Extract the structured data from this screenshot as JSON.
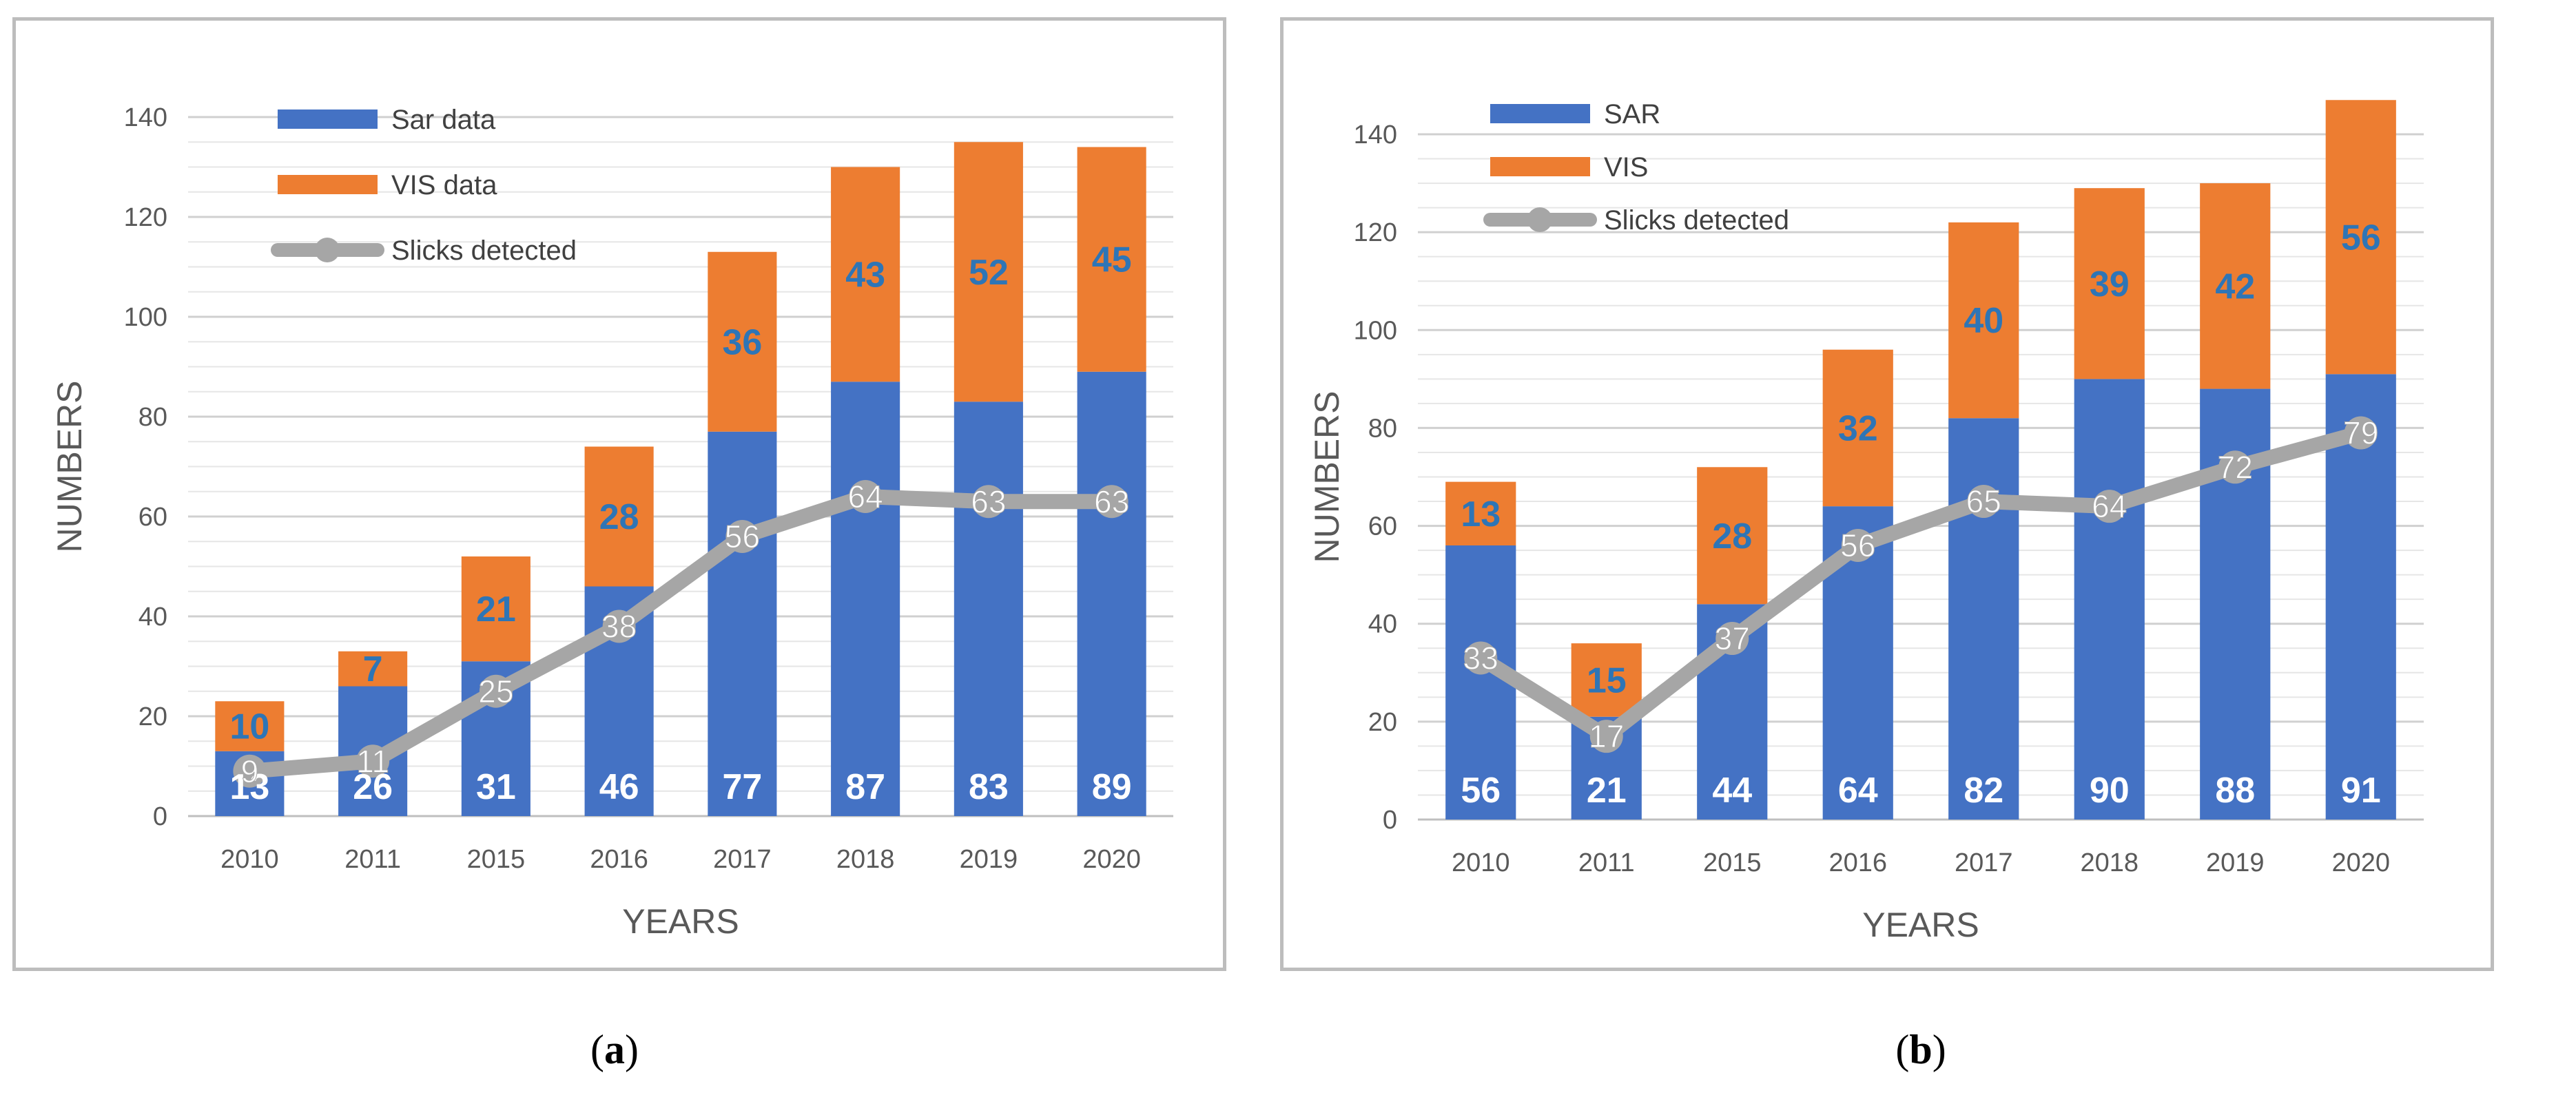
{
  "chart_data": [
    {
      "id": "a",
      "type": "bar",
      "stacked": true,
      "categories": [
        "2010",
        "2011",
        "2015",
        "2016",
        "2017",
        "2018",
        "2019",
        "2020"
      ],
      "series": [
        {
          "name": "Sar data",
          "type": "bar",
          "color": "#4472c4",
          "values": [
            13,
            26,
            31,
            46,
            77,
            87,
            83,
            89
          ]
        },
        {
          "name": "VIS data",
          "type": "bar",
          "color": "#ed7d31",
          "values": [
            10,
            7,
            21,
            28,
            36,
            43,
            52,
            45
          ]
        },
        {
          "name": "Slicks detected",
          "type": "line",
          "color": "#a6a6a6",
          "values": [
            9,
            11,
            25,
            38,
            56,
            64,
            63,
            63
          ]
        }
      ],
      "xlabel": "YEARS",
      "ylabel": "NUMBERS",
      "ylim": [
        0,
        140
      ],
      "yticks": [
        "0",
        "20",
        "40",
        "60",
        "80",
        "100",
        "120",
        "140"
      ],
      "grid": true,
      "legend": "top-left",
      "caption_label": "a"
    },
    {
      "id": "b",
      "type": "bar",
      "stacked": true,
      "categories": [
        "2010",
        "2011",
        "2015",
        "2016",
        "2017",
        "2018",
        "2019",
        "2020"
      ],
      "series": [
        {
          "name": "SAR",
          "type": "bar",
          "color": "#4472c4",
          "values": [
            56,
            21,
            44,
            64,
            82,
            90,
            88,
            91
          ]
        },
        {
          "name": "VIS",
          "type": "bar",
          "color": "#ed7d31",
          "values": [
            13,
            15,
            28,
            32,
            40,
            39,
            42,
            56
          ]
        },
        {
          "name": "Slicks detected",
          "type": "line",
          "color": "#a6a6a6",
          "values": [
            33,
            17,
            37,
            56,
            65,
            64,
            72,
            79
          ]
        }
      ],
      "xlabel": "YEARS",
      "ylabel": "NUMBERS",
      "ylim": [
        0,
        140
      ],
      "yticks": [
        "0",
        "20",
        "40",
        "60",
        "80",
        "100",
        "120",
        "140"
      ],
      "grid": true,
      "legend": "top-left",
      "caption_label": "b"
    }
  ]
}
